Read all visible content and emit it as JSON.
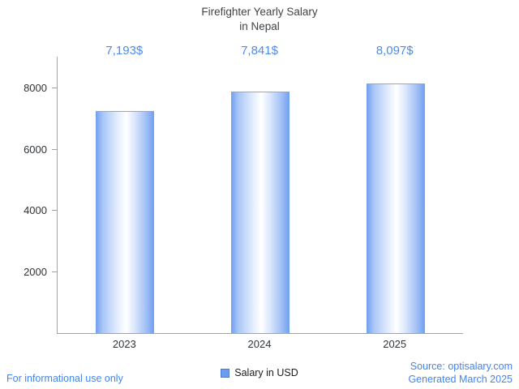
{
  "title": {
    "line1": "Firefighter Yearly Salary",
    "line2": "in Nepal"
  },
  "chart_data": {
    "type": "bar",
    "title": "Firefighter Yearly Salary in Nepal",
    "categories": [
      "2023",
      "2024",
      "2025"
    ],
    "values": [
      7193,
      7841,
      8097
    ],
    "value_labels": [
      "7,193$",
      "7,841$",
      "8,097$"
    ],
    "xlabel": "",
    "ylabel": "",
    "yticks": [
      2000,
      4000,
      6000,
      8000
    ],
    "ylim": [
      0,
      9000
    ],
    "grid": false,
    "legend": "Salary in USD",
    "legend_position": "bottom-center"
  },
  "footer": {
    "disclaimer": "For informational use only",
    "source": "Source: optisalary.com",
    "generated": "Generated March 2025"
  },
  "colors": {
    "value_label_blue": "#4d8af0",
    "footer_blue": "#4285f4",
    "bar_edge_blue": "#6f9ff0",
    "legend_swatch_blue": "#6b9ded",
    "axis_gray": "#a3a3a3",
    "text_dark": "#2f3337"
  }
}
